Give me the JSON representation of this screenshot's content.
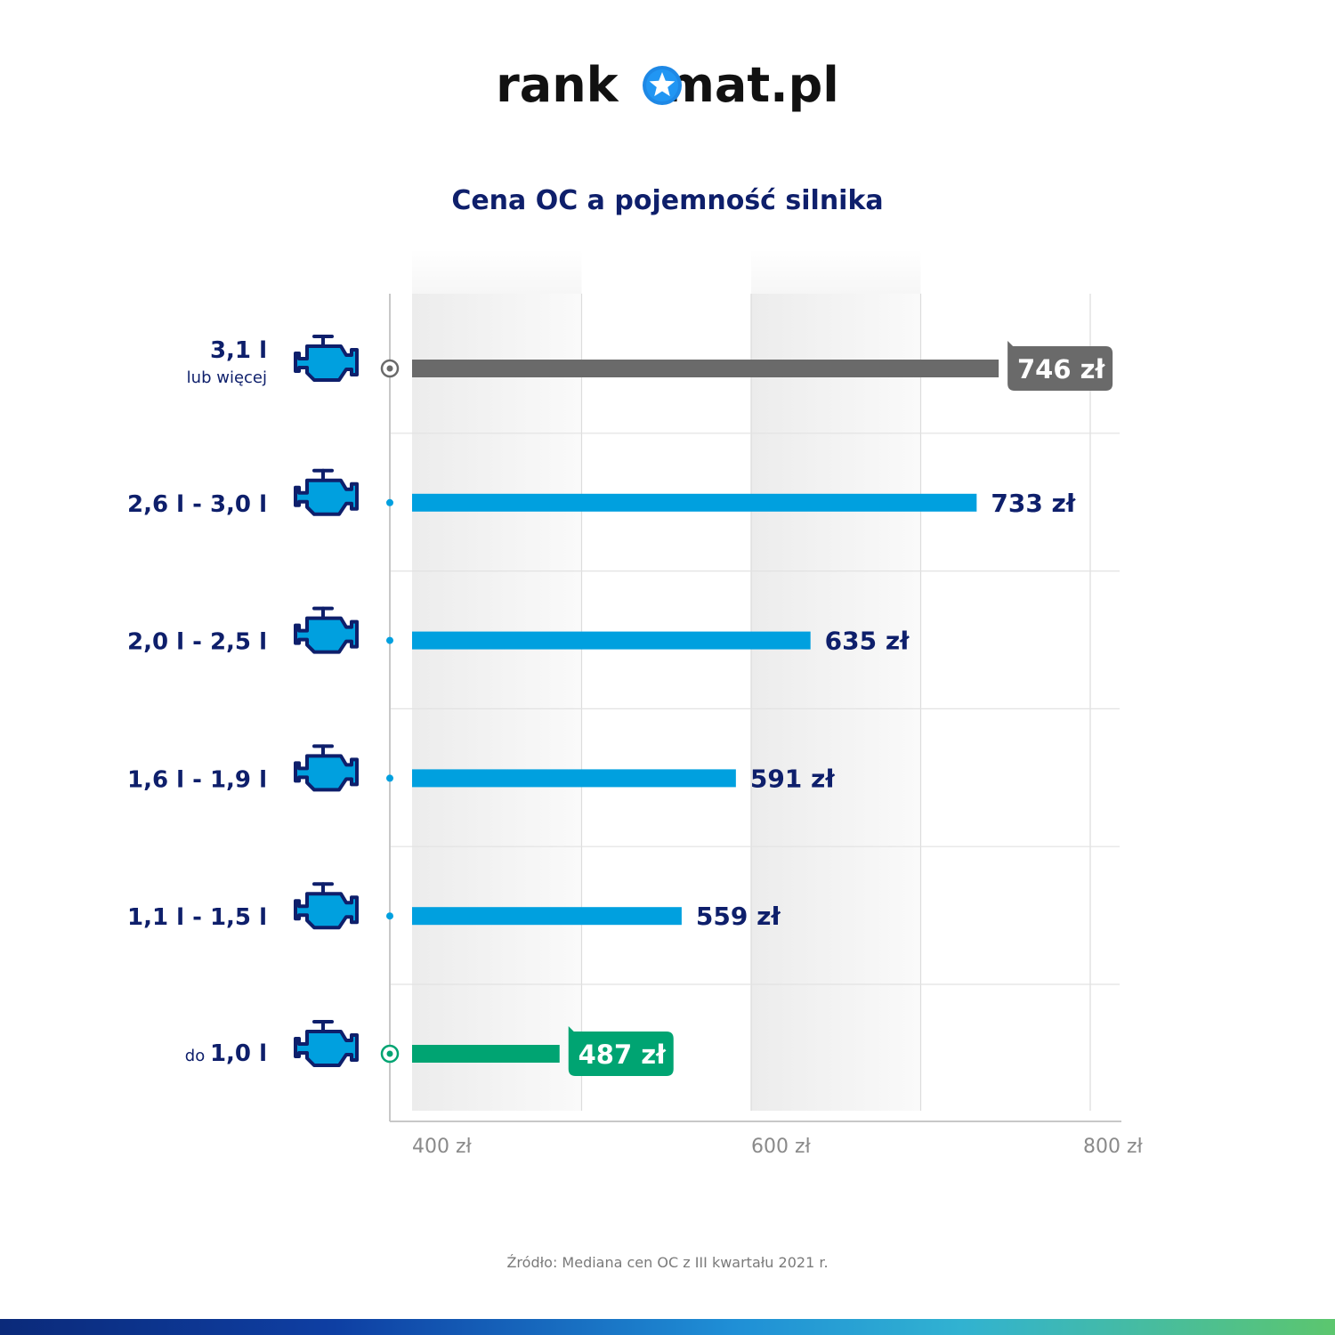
{
  "logo": {
    "text_before": "rank",
    "text_after": "mat.pl"
  },
  "source_note": "Źródło: Mediana cen OC z III kwartału 2021 r.",
  "colors": {
    "navy": "#0e1f6b",
    "blue": "#00a0df",
    "gray_bar": "#6a6a6a",
    "green": "#00a472",
    "axis_text": "#8a8a8a",
    "icon_fill": "#00a0df",
    "icon_stroke": "#0e1f6b"
  },
  "chart_data": {
    "type": "bar",
    "orientation": "horizontal",
    "title": "Cena OC a pojemność silnika",
    "xlabel": "",
    "ylabel": "",
    "xlim": [
      400,
      800
    ],
    "x_ticks": [
      "400 zł",
      "600 zł",
      "800 zł"
    ],
    "x_tick_values": [
      400,
      600,
      800
    ],
    "grid": true,
    "categories": [
      {
        "label_main": "3,1 l",
        "label_prefix": "",
        "label_sub": "lub więcej"
      },
      {
        "label_main": "2,6 l - 3,0 l",
        "label_prefix": "",
        "label_sub": ""
      },
      {
        "label_main": "2,0 l - 2,5 l",
        "label_prefix": "",
        "label_sub": ""
      },
      {
        "label_main": "1,6 l - 1,9 l",
        "label_prefix": "",
        "label_sub": ""
      },
      {
        "label_main": "1,1 l - 1,5 l",
        "label_prefix": "",
        "label_sub": ""
      },
      {
        "label_main": "1,0 l",
        "label_prefix": "do",
        "label_sub": ""
      }
    ],
    "values": [
      746,
      733,
      635,
      591,
      559,
      487
    ],
    "value_labels": [
      "746 zł",
      "733 zł",
      "635 zł",
      "591 zł",
      "559 zł",
      "487 zł"
    ],
    "highlight": [
      "max",
      "normal",
      "normal",
      "normal",
      "normal",
      "min"
    ]
  }
}
